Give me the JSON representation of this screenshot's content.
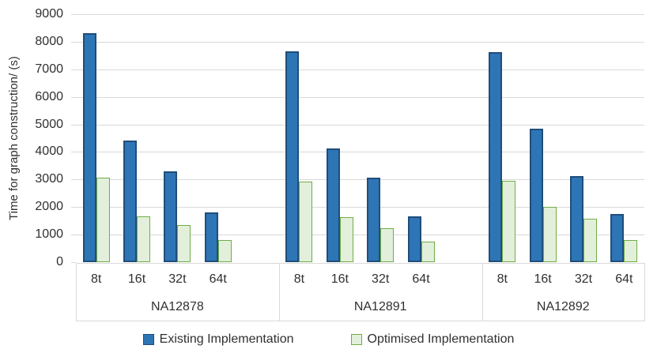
{
  "chart_data": {
    "type": "bar",
    "title": "",
    "ylabel": "Time for graph construction/ (s)",
    "xlabel": "",
    "ylim": [
      0,
      9000
    ],
    "y_ticks": [
      0,
      1000,
      2000,
      3000,
      4000,
      5000,
      6000,
      7000,
      8000,
      9000
    ],
    "grid": "horizontal",
    "legend_position": "bottom",
    "gridline_color": "#D9D9D9",
    "text_color": "#303030",
    "groups": [
      "NA12878",
      "NA12891",
      "NA12892"
    ],
    "categories": [
      "8t",
      "16t",
      "32t",
      "64t"
    ],
    "series": [
      {
        "name": "Existing Implementation",
        "fill": "#2E75B6",
        "border": "#1F4E79",
        "values": [
          [
            8300,
            4400,
            3300,
            1820
          ],
          [
            7650,
            4130,
            3060,
            1670
          ],
          [
            7620,
            4850,
            3120,
            1760
          ]
        ]
      },
      {
        "name": "Optimised Implementation",
        "fill": "#E2EFDA",
        "border": "#70AD47",
        "values": [
          [
            3080,
            1650,
            1340,
            790
          ],
          [
            2930,
            1620,
            1230,
            750
          ],
          [
            2940,
            2020,
            1570,
            790
          ]
        ]
      }
    ]
  }
}
